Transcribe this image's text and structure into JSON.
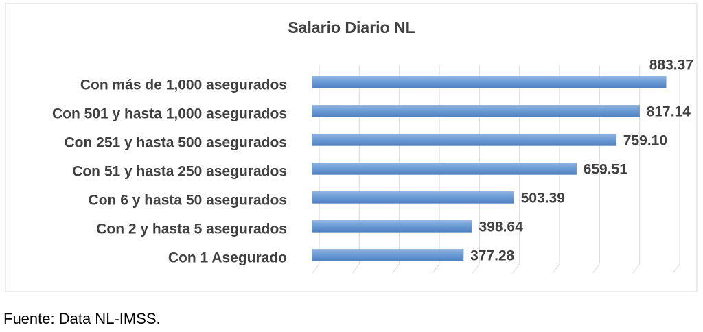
{
  "chart_data": {
    "type": "bar",
    "orientation": "horizontal",
    "title": "Salario Diario NL",
    "categories": [
      "Con más de 1,000 asegurados",
      "Con 501 y hasta 1,000 asegurados",
      "Con 251 y hasta 500 asegurados",
      "Con 51 y hasta 250 asegurados",
      "Con 6 y hasta 50 asegurados",
      "Con 2 y hasta 5 asegurados",
      "Con 1 Asegurado"
    ],
    "values": [
      883.37,
      817.14,
      759.1,
      659.51,
      503.39,
      398.64,
      377.28
    ],
    "value_labels": [
      "883.37",
      "817.14",
      "759.10",
      "659.51",
      "503.39",
      "398.64",
      "377.28"
    ],
    "color": "#6a9ad4",
    "xlim": [
      0,
      900
    ],
    "xticks": [
      0,
      100,
      200,
      300,
      400,
      500,
      600,
      700,
      800,
      900
    ],
    "grid": true,
    "source": "Fuente: Data NL-IMSS."
  }
}
